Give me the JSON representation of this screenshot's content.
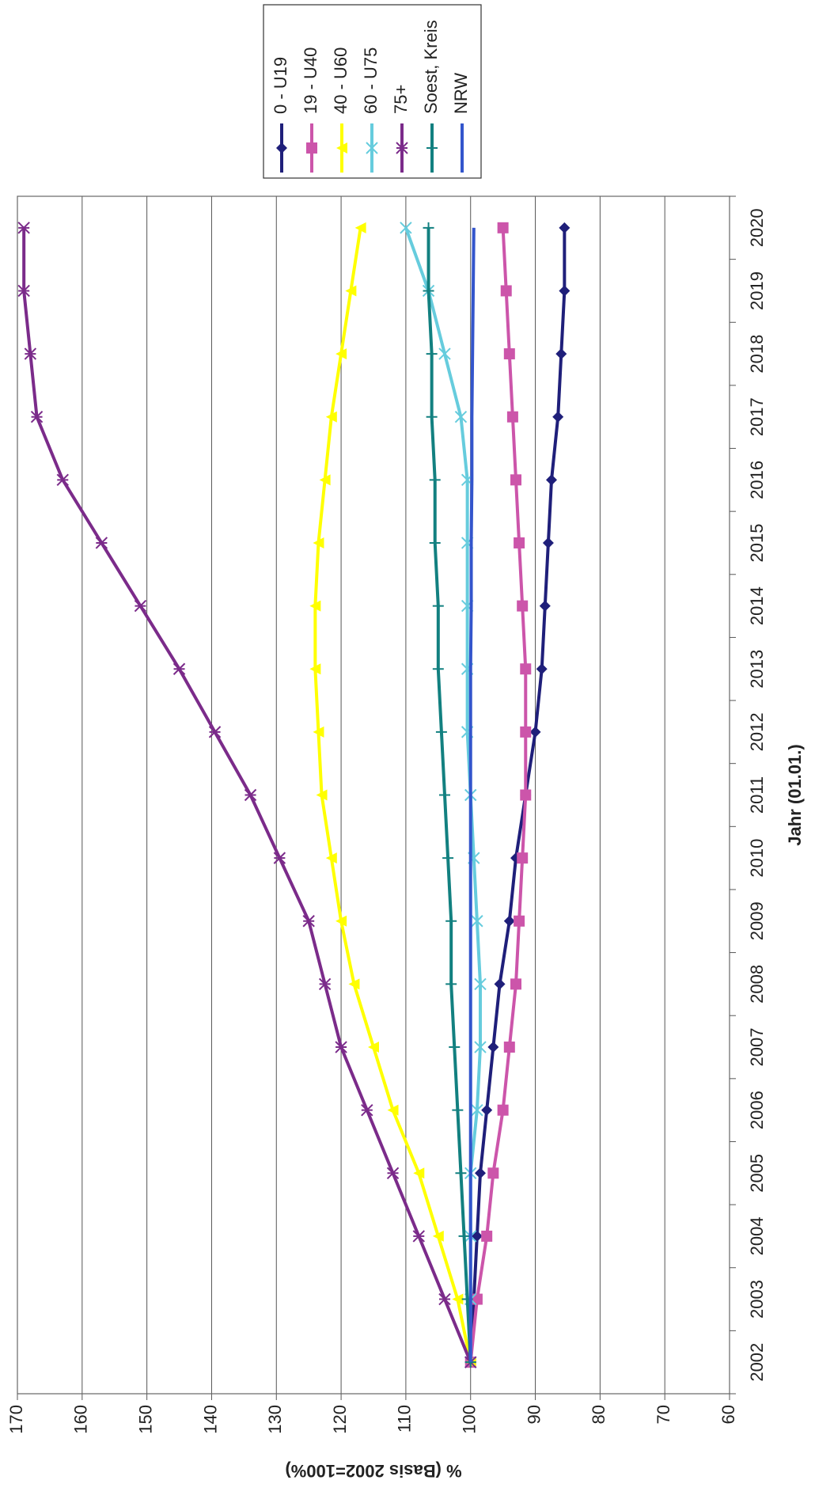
{
  "chart_data": {
    "type": "line",
    "x_label": "Jahr (01.01.)",
    "y_label": "% (Basis 2002=100%)",
    "categories": [
      "2002",
      "2003",
      "2004",
      "2005",
      "2006",
      "2007",
      "2008",
      "2009",
      "2010",
      "2011",
      "2012",
      "2013",
      "2014",
      "2015",
      "2016",
      "2017",
      "2018",
      "2019",
      "2020"
    ],
    "ylim": [
      60,
      170
    ],
    "yticks": [
      60,
      70,
      80,
      90,
      100,
      110,
      120,
      130,
      140,
      150,
      160,
      170
    ],
    "grid": true,
    "rotation": -90,
    "series": [
      {
        "name": "0 - U19",
        "color": "#1f1f7a",
        "marker": "diamond",
        "values": [
          100,
          99.5,
          99,
          98.5,
          97.5,
          96.5,
          95.5,
          94,
          93,
          91.5,
          90,
          89,
          88.5,
          88,
          87.5,
          86.5,
          86,
          85.5,
          85.5
        ]
      },
      {
        "name": "19 - U40",
        "color": "#cc55aa",
        "marker": "square",
        "values": [
          100,
          99,
          97.5,
          96.5,
          95,
          94,
          93,
          92.5,
          92,
          91.5,
          91.5,
          91.5,
          92,
          92.5,
          93,
          93.5,
          94,
          94.5,
          95
        ]
      },
      {
        "name": "40 - U60",
        "color": "#ffff00",
        "marker": "triangle",
        "values": [
          100,
          102,
          105,
          108,
          112,
          115,
          118,
          120,
          121.5,
          123,
          123.5,
          124,
          124,
          123.5,
          122.5,
          121.5,
          120,
          118.5,
          117
        ]
      },
      {
        "name": "60 - U75",
        "color": "#66ccdd",
        "marker": "x",
        "values": [
          100,
          100,
          100,
          100,
          99,
          98.5,
          98.5,
          99,
          99.5,
          100,
          100.5,
          100.5,
          100.5,
          100.5,
          100.5,
          101.5,
          104,
          106.5,
          110
        ]
      },
      {
        "name": "75+",
        "color": "#7b2b8a",
        "marker": "star",
        "values": [
          100,
          104,
          108,
          112,
          116,
          120,
          122.5,
          125,
          129.5,
          134,
          139.5,
          145,
          151,
          157,
          163,
          167,
          168,
          169,
          169
        ]
      },
      {
        "name": "Soest, Kreis",
        "color": "#128080",
        "marker": "plus",
        "values": [
          100,
          100.5,
          101,
          101.5,
          102,
          102.5,
          103,
          103,
          103.5,
          104,
          104.5,
          105,
          105,
          105.5,
          105.5,
          106,
          106,
          106.5,
          106.5
        ]
      },
      {
        "name": "NRW",
        "color": "#3355cc",
        "marker": "none",
        "values": [
          100,
          100,
          100,
          100,
          100,
          100,
          100,
          100,
          100,
          100,
          100,
          100,
          99.9,
          99.9,
          99.8,
          99.8,
          99.7,
          99.6,
          99.5
        ]
      }
    ]
  }
}
